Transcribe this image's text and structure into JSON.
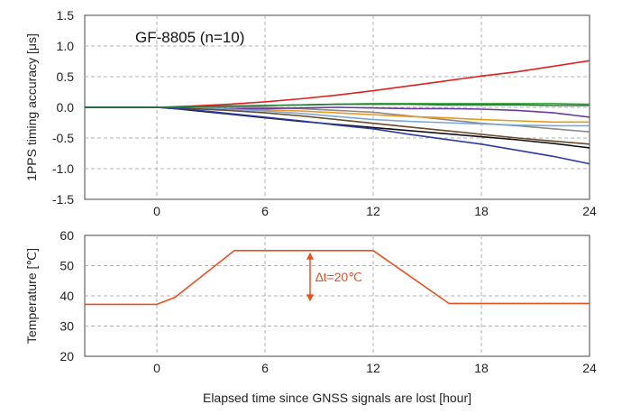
{
  "chart_data": [
    {
      "type": "line",
      "title": "GF-8805 (n=10)",
      "xlabel": "",
      "ylabel": "1PPS timing accuracy [μs]",
      "xlim": [
        -4,
        24
      ],
      "ylim": [
        -1.5,
        1.5
      ],
      "x_ticks": [
        "0",
        "6",
        "12",
        "18",
        "24"
      ],
      "y_ticks": [
        "1.5",
        "1.0",
        "0.5",
        "0.0",
        "-0.5",
        "-1.0",
        "-1.5"
      ],
      "grid": true,
      "series": [
        {
          "color": "#e02020",
          "x": [
            -4,
            0,
            1,
            2,
            4,
            6,
            8,
            10,
            12,
            14,
            16,
            18,
            20,
            22,
            24
          ],
          "y": [
            0,
            0,
            0.01,
            0.02,
            0.05,
            0.09,
            0.14,
            0.2,
            0.27,
            0.35,
            0.43,
            0.51,
            0.58,
            0.67,
            0.76
          ]
        },
        {
          "color": "#2fa02f",
          "x": [
            -4,
            0,
            1,
            2,
            4,
            6,
            8,
            10,
            12,
            14,
            16,
            18,
            20,
            22,
            24
          ],
          "y": [
            0,
            0,
            0,
            0.01,
            0.02,
            0.03,
            0.04,
            0.05,
            0.06,
            0.06,
            0.06,
            0.06,
            0.06,
            0.06,
            0.05
          ]
        },
        {
          "color": "#8a8a8a",
          "x": [
            -4,
            0,
            1,
            2,
            4,
            6,
            8,
            10,
            12,
            14,
            16,
            18,
            20,
            22,
            24
          ],
          "y": [
            0,
            0,
            0,
            0.01,
            0.01,
            0.0,
            -0.02,
            -0.05,
            -0.08,
            -0.14,
            -0.2,
            -0.26,
            -0.3,
            -0.35,
            -0.4
          ]
        },
        {
          "color": "#e89a1a",
          "x": [
            -4,
            0,
            1,
            2,
            4,
            6,
            8,
            10,
            12,
            14,
            16,
            18,
            20,
            22,
            24
          ],
          "y": [
            0,
            0,
            0,
            -0.01,
            -0.02,
            -0.04,
            -0.06,
            -0.09,
            -0.12,
            -0.15,
            -0.17,
            -0.2,
            -0.22,
            -0.24,
            -0.24
          ]
        },
        {
          "color": "#6a3aa0",
          "x": [
            -4,
            0,
            1,
            2,
            4,
            6,
            8,
            10,
            12,
            14,
            16,
            18,
            20,
            22,
            24
          ],
          "y": [
            0,
            0,
            0,
            -0.01,
            -0.02,
            -0.02,
            -0.01,
            0.0,
            -0.01,
            -0.02,
            -0.02,
            -0.03,
            -0.05,
            -0.09,
            -0.16
          ]
        },
        {
          "color": "#7aa7d6",
          "x": [
            -4,
            0,
            1,
            2,
            4,
            6,
            8,
            10,
            12,
            14,
            16,
            18,
            20,
            22,
            24
          ],
          "y": [
            0,
            0,
            0,
            -0.01,
            -0.03,
            -0.06,
            -0.1,
            -0.15,
            -0.2,
            -0.23,
            -0.25,
            -0.27,
            -0.29,
            -0.3,
            -0.3
          ]
        },
        {
          "color": "#6a4a2a",
          "x": [
            -4,
            0,
            1,
            2,
            4,
            6,
            8,
            10,
            12,
            14,
            16,
            18,
            20,
            22,
            24
          ],
          "y": [
            0,
            0,
            0,
            -0.02,
            -0.05,
            -0.09,
            -0.14,
            -0.2,
            -0.26,
            -0.32,
            -0.38,
            -0.44,
            -0.5,
            -0.55,
            -0.6
          ]
        },
        {
          "color": "#111111",
          "x": [
            -4,
            0,
            1,
            2,
            4,
            6,
            8,
            10,
            12,
            14,
            16,
            18,
            20,
            22,
            24
          ],
          "y": [
            0,
            0,
            -0.02,
            -0.05,
            -0.11,
            -0.17,
            -0.23,
            -0.28,
            -0.33,
            -0.38,
            -0.43,
            -0.48,
            -0.53,
            -0.59,
            -0.66
          ]
        },
        {
          "color": "#2c3aa6",
          "x": [
            -4,
            0,
            1,
            2,
            4,
            6,
            8,
            10,
            12,
            14,
            16,
            18,
            20,
            22,
            24
          ],
          "y": [
            0,
            0,
            -0.02,
            -0.04,
            -0.1,
            -0.16,
            -0.22,
            -0.29,
            -0.35,
            -0.44,
            -0.52,
            -0.6,
            -0.7,
            -0.8,
            -0.92
          ]
        },
        {
          "color": "#2a7a3a",
          "x": [
            -4,
            0,
            1,
            2,
            4,
            6,
            8,
            10,
            12,
            14,
            16,
            18,
            20,
            22,
            24
          ],
          "y": [
            0,
            0,
            0,
            0.01,
            0.02,
            0.03,
            0.04,
            0.05,
            0.05,
            0.05,
            0.04,
            0.04,
            0.04,
            0.03,
            0.03
          ]
        }
      ]
    },
    {
      "type": "line",
      "title": "",
      "xlabel": "Elapsed time since GNSS signals are lost [hour]",
      "ylabel": "Temperature [℃]",
      "xlim": [
        -4,
        24
      ],
      "ylim": [
        20,
        60
      ],
      "x_ticks": [
        "0",
        "6",
        "12",
        "18",
        "24"
      ],
      "y_ticks": [
        "60",
        "50",
        "40",
        "30",
        "20"
      ],
      "grid": true,
      "series": [
        {
          "color": "#e8501f",
          "x": [
            -4,
            0,
            1,
            4.3,
            12,
            16.2,
            24
          ],
          "y": [
            37.2,
            37.2,
            39.5,
            55,
            55,
            37.5,
            37.5
          ]
        }
      ],
      "annotation": {
        "text": "∆t=20℃",
        "x": 8.5,
        "y_from": 55,
        "y_to": 37.5
      }
    }
  ],
  "colors": {
    "axis": "#222222",
    "grid": "#b0b0b0",
    "annotation": "#e8501f"
  }
}
